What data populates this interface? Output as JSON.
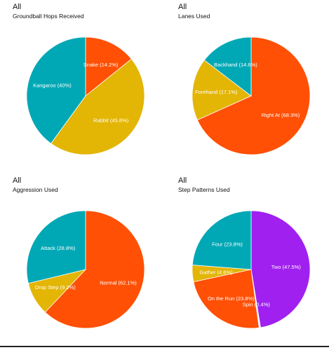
{
  "chart_data": [
    {
      "type": "pie",
      "title": "All",
      "subtitle": "Groundball Hops Received",
      "slices": [
        {
          "label": "Snake (14.2%)",
          "value": 14.2,
          "color": "#FF5005"
        },
        {
          "label": "Rabbit (45.8%)",
          "value": 45.8,
          "color": "#E3B505"
        },
        {
          "label": "Kangaroo (40%)",
          "value": 40.0,
          "color": "#00A8B5"
        }
      ]
    },
    {
      "type": "pie",
      "title": "All",
      "subtitle": "Lanes Used",
      "slices": [
        {
          "label": "Right At (68.3%)",
          "value": 68.3,
          "color": "#FF5005"
        },
        {
          "label": "Forehand (17.1%)",
          "value": 17.1,
          "color": "#E3B505"
        },
        {
          "label": "Backhand (14.6%)",
          "value": 14.6,
          "color": "#00A8B5"
        }
      ]
    },
    {
      "type": "pie",
      "title": "All",
      "subtitle": "Aggression Used",
      "slices": [
        {
          "label": "Normal (62.1%)",
          "value": 62.1,
          "color": "#FF5005"
        },
        {
          "label": "Drop Step (9.2%)",
          "value": 9.2,
          "color": "#E3B505"
        },
        {
          "label": "Attack (28.8%)",
          "value": 28.8,
          "color": "#00A8B5"
        }
      ]
    },
    {
      "type": "pie",
      "title": "All",
      "subtitle": "Step Patterns Used",
      "slices": [
        {
          "label": "Two (47.5%)",
          "value": 47.5,
          "color": "#A020F0"
        },
        {
          "label": "Spin (0.4%)",
          "value": 0.4,
          "color": "#ffffff"
        },
        {
          "label": "On the Run (23.8%)",
          "value": 23.8,
          "color": "#FF5005"
        },
        {
          "label": "Gather (4.6%)",
          "value": 4.6,
          "color": "#E3B505"
        },
        {
          "label": "Four (23.8%)",
          "value": 23.8,
          "color": "#00A8B5"
        }
      ]
    }
  ]
}
